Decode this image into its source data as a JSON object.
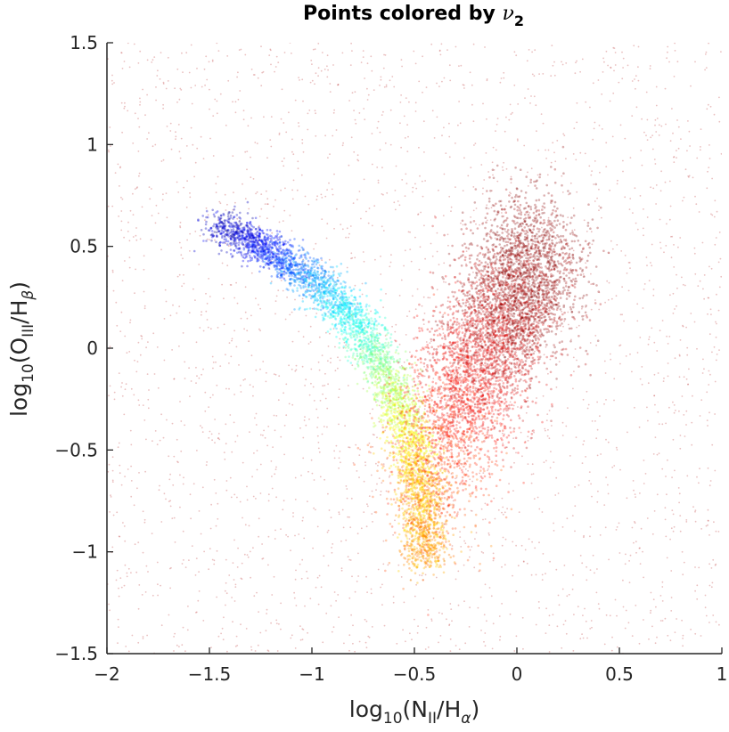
{
  "chart_data": {
    "type": "scatter",
    "title": {
      "text": "Points colored by ",
      "symbol": "ν",
      "subscript": "2"
    },
    "xlabel": {
      "prefix": "log",
      "prefix_sub": "10",
      "open": "(N",
      "num_sub": "II",
      "mid": "/H",
      "den_sub": "α",
      "close": ")"
    },
    "ylabel": {
      "prefix": "log",
      "prefix_sub": "10",
      "open": "(O",
      "num_sub": "III",
      "mid": "/H",
      "den_sub": "β",
      "close": ")"
    },
    "xlim": [
      -2,
      1
    ],
    "ylim": [
      -1.5,
      1.5
    ],
    "xticks": [
      -2,
      -1.5,
      -1,
      -0.5,
      0,
      0.5,
      1
    ],
    "xtick_labels": [
      "−2",
      "−1.5",
      "−1",
      "−0.5",
      "0",
      "0.5",
      "1"
    ],
    "yticks": [
      -1.5,
      -1,
      -0.5,
      0,
      0.5,
      1,
      1.5
    ],
    "ytick_labels": [
      "−1.5",
      "−1",
      "−0.5",
      "0",
      "0.5",
      "1",
      "1.5"
    ],
    "grid": false,
    "colormap": "jet",
    "box": "left-bottom",
    "series": [
      {
        "description": "star-forming branch",
        "spine_x": [
          -1.45,
          -1.2,
          -0.95,
          -0.75,
          -0.6,
          -0.5,
          -0.46,
          -0.45
        ],
        "spine_y": [
          0.6,
          0.48,
          0.3,
          0.08,
          -0.2,
          -0.5,
          -0.8,
          -1.05
        ],
        "color_values": [
          0.05,
          0.15,
          0.3,
          0.42,
          0.55,
          0.65,
          0.7,
          0.72
        ]
      },
      {
        "description": "AGN / LINER branch",
        "spine_x": [
          -0.45,
          -0.3,
          -0.15,
          0.0,
          0.1
        ],
        "spine_y": [
          -0.8,
          -0.3,
          0.0,
          0.25,
          0.5
        ],
        "color_values": [
          0.78,
          0.86,
          0.92,
          0.98,
          1.0
        ]
      },
      {
        "description": "sparse background scatter",
        "x_range": [
          -2,
          1
        ],
        "y_range": [
          -1.5,
          1.5
        ],
        "color": "#c24a4a"
      }
    ]
  }
}
